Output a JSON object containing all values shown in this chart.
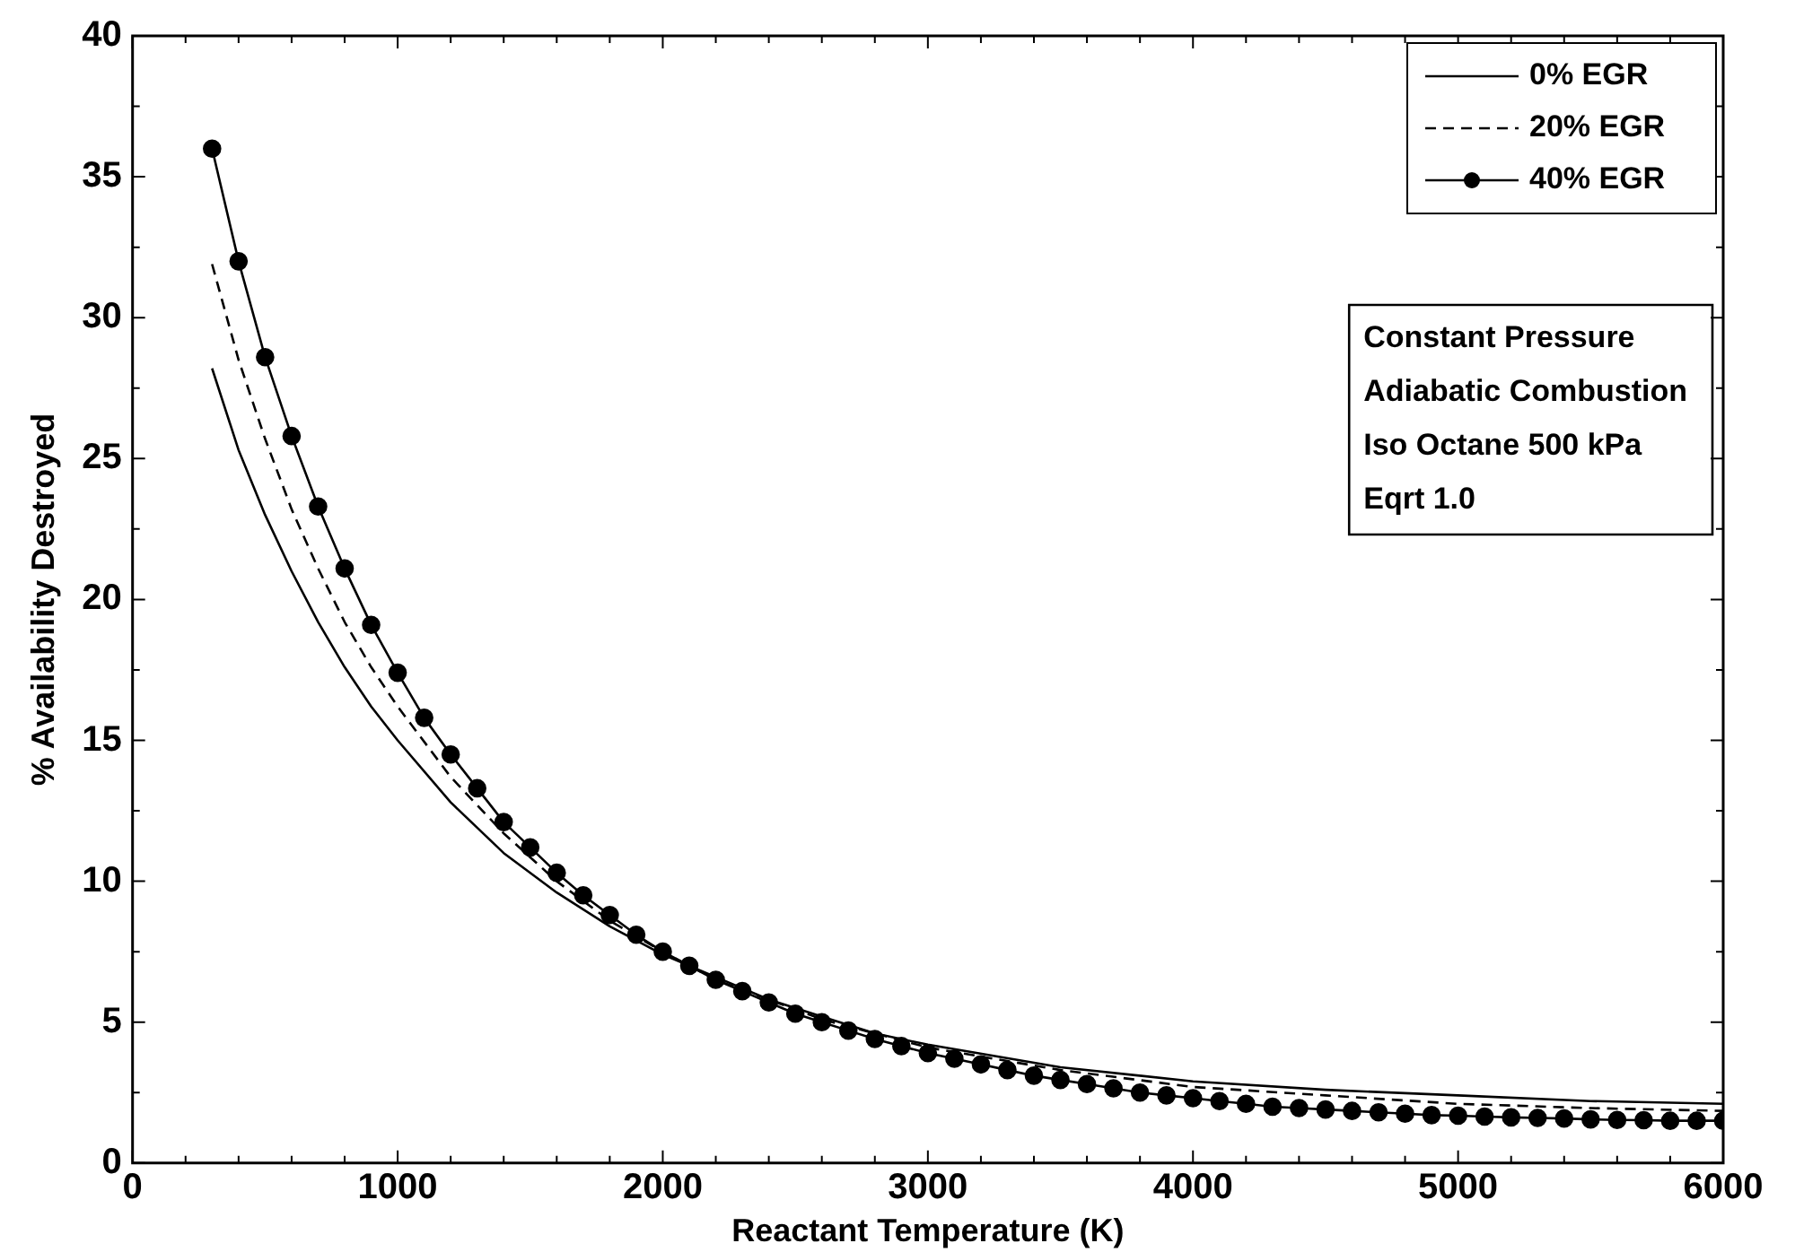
{
  "chart_data": {
    "type": "line",
    "xlabel": "Reactant Temperature (K)",
    "ylabel": "% Availability Destroyed",
    "xlim": [
      0,
      6000
    ],
    "ylim": [
      0,
      40
    ],
    "xticks": [
      0,
      1000,
      2000,
      3000,
      4000,
      5000,
      6000
    ],
    "yticks": [
      0,
      5,
      10,
      15,
      20,
      25,
      30,
      35,
      40
    ],
    "grid": false,
    "legend": "top right",
    "annotations": [
      "Constant Pressure",
      "Adiabatic Combustion",
      "Iso Octane 500 kPa",
      "Eqrt 1.0"
    ],
    "series": [
      {
        "name": "0% EGR",
        "color": "#000000",
        "marker": "none",
        "line_style": "solid",
        "x": [
          300,
          400,
          500,
          600,
          700,
          800,
          900,
          1000,
          1200,
          1400,
          1600,
          1800,
          2000,
          2200,
          2400,
          2600,
          2800,
          3000,
          3500,
          4000,
          4500,
          5000,
          5500,
          6000
        ],
        "values": [
          28.2,
          25.3,
          23.0,
          21.0,
          19.2,
          17.6,
          16.2,
          15.0,
          12.8,
          11.0,
          9.6,
          8.4,
          7.4,
          6.6,
          5.8,
          5.2,
          4.6,
          4.2,
          3.4,
          2.9,
          2.6,
          2.4,
          2.2,
          2.1
        ]
      },
      {
        "name": "20% EGR",
        "color": "#000000",
        "marker": "none",
        "line_style": "dashed",
        "x": [
          300,
          400,
          500,
          600,
          700,
          800,
          900,
          1000,
          1200,
          1400,
          1600,
          1800,
          2000,
          2200,
          2400,
          2600,
          2800,
          3000,
          3500,
          4000,
          4500,
          5000,
          5500,
          6000
        ],
        "values": [
          31.9,
          28.5,
          25.7,
          23.2,
          21.1,
          19.2,
          17.6,
          16.2,
          13.7,
          11.7,
          10.0,
          8.6,
          7.5,
          6.5,
          5.8,
          5.1,
          4.6,
          4.1,
          3.3,
          2.7,
          2.4,
          2.1,
          1.95,
          1.85
        ]
      },
      {
        "name": "40% EGR",
        "color": "#000000",
        "marker": "circle",
        "line_style": "solid",
        "x": [
          300,
          400,
          500,
          600,
          700,
          800,
          900,
          1000,
          1100,
          1200,
          1300,
          1400,
          1500,
          1600,
          1700,
          1800,
          1900,
          2000,
          2100,
          2200,
          2300,
          2400,
          2500,
          2600,
          2700,
          2800,
          2900,
          3000,
          3100,
          3200,
          3300,
          3400,
          3500,
          3600,
          3700,
          3800,
          3900,
          4000,
          4100,
          4200,
          4300,
          4400,
          4500,
          4600,
          4700,
          4800,
          4900,
          5000,
          5100,
          5200,
          5300,
          5400,
          5500,
          5600,
          5700,
          5800,
          5900,
          6000
        ],
        "values": [
          36.0,
          32.0,
          28.6,
          25.8,
          23.3,
          21.1,
          19.1,
          17.4,
          15.8,
          14.5,
          13.3,
          12.1,
          11.2,
          10.3,
          9.5,
          8.8,
          8.1,
          7.5,
          7.0,
          6.5,
          6.1,
          5.7,
          5.3,
          5.0,
          4.7,
          4.4,
          4.15,
          3.9,
          3.7,
          3.5,
          3.3,
          3.1,
          2.95,
          2.8,
          2.65,
          2.5,
          2.4,
          2.3,
          2.2,
          2.1,
          2.0,
          1.95,
          1.9,
          1.85,
          1.8,
          1.75,
          1.7,
          1.68,
          1.65,
          1.62,
          1.6,
          1.58,
          1.55,
          1.53,
          1.52,
          1.5,
          1.5,
          1.5
        ]
      }
    ]
  }
}
